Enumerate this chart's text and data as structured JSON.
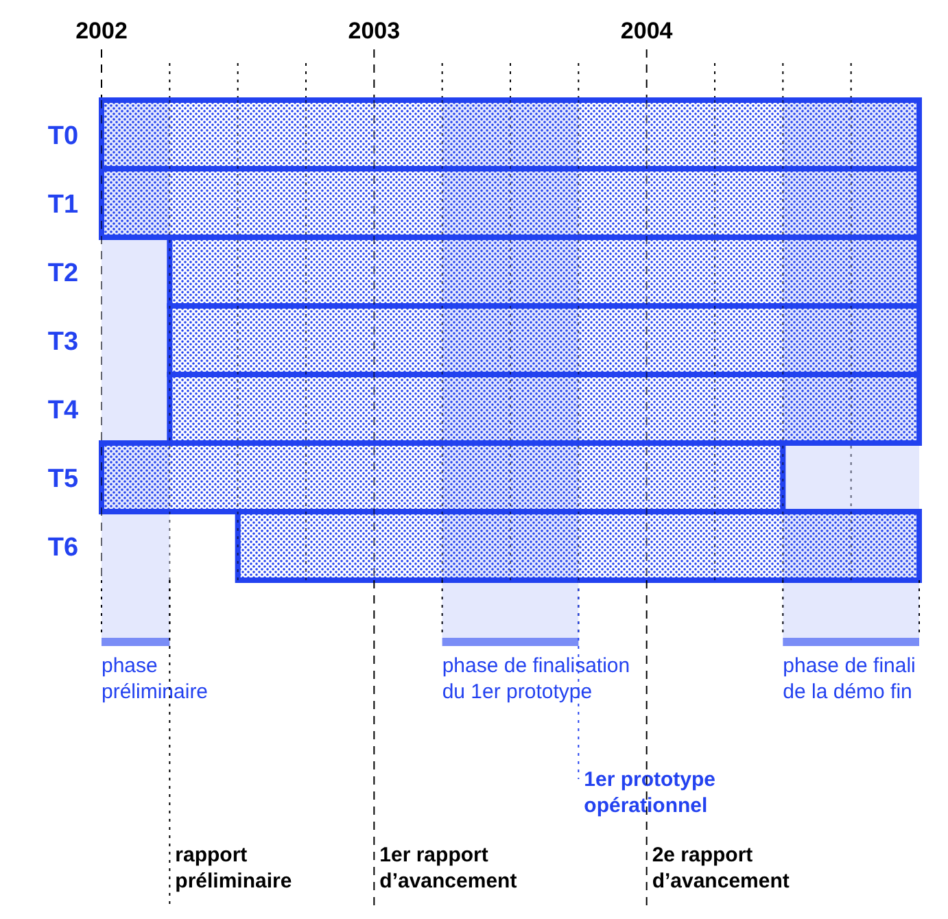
{
  "chart_data": {
    "type": "bar",
    "orientation": "horizontal",
    "categories": [
      "T0",
      "T1",
      "T2",
      "T3",
      "T4",
      "T5",
      "T6"
    ],
    "base": [
      2002,
      2002,
      2002.25,
      2002.25,
      2002.25,
      2002,
      2002.5
    ],
    "values": [
      3,
      3,
      2.75,
      2.75,
      2.75,
      2.5,
      2.5
    ],
    "color": "#2342f0",
    "xlim": [
      2002,
      2005
    ],
    "xticks": [
      2002,
      {
        "value": 2002.25,
        "label": null
      },
      {
        "value": 2002.5,
        "label": null
      },
      {
        "value": 2002.75,
        "label": null
      },
      2003,
      {
        "value": 2003.25,
        "label": null
      },
      {
        "value": 2003.5,
        "label": null
      },
      {
        "value": 2003.75,
        "label": null
      },
      2004,
      {
        "value": 2004.25,
        "label": null
      },
      {
        "value": 2004.5,
        "label": null
      },
      {
        "value": 2004.75,
        "label": null
      }
    ],
    "grid": "x",
    "bands": [
      {
        "axis": "x",
        "from": 2002,
        "to": 2002.25,
        "label": "phase\npréliminaire",
        "color": "#2342f0"
      },
      {
        "axis": "x",
        "from": 2003.25,
        "to": 2003.75,
        "label": "phase de finalisation\ndu 1er prototype",
        "color": "#2342f0"
      },
      {
        "axis": "x",
        "from": 2004.5,
        "to": 2005,
        "label": "phase de finali\nde la démo fin",
        "color": "#2342f0"
      }
    ],
    "ref_lines": [
      {
        "axis": "x",
        "value": 2002.25,
        "label": "rapport\npréliminaire",
        "color": "#000000",
        "line_style": "dotted"
      },
      {
        "axis": "x",
        "value": 2003,
        "label": "1er rapport\nd’avancement",
        "color": "#000000",
        "line_style": "dashed"
      },
      {
        "axis": "x",
        "value": 2003.75,
        "label": "1er prototype\nopérationnel",
        "color": "#2342f0",
        "line_style": "dotted"
      },
      {
        "axis": "x",
        "value": 2004,
        "label": "2e rapport\nd’avancement",
        "color": "#000000",
        "line_style": "dashed"
      }
    ]
  }
}
